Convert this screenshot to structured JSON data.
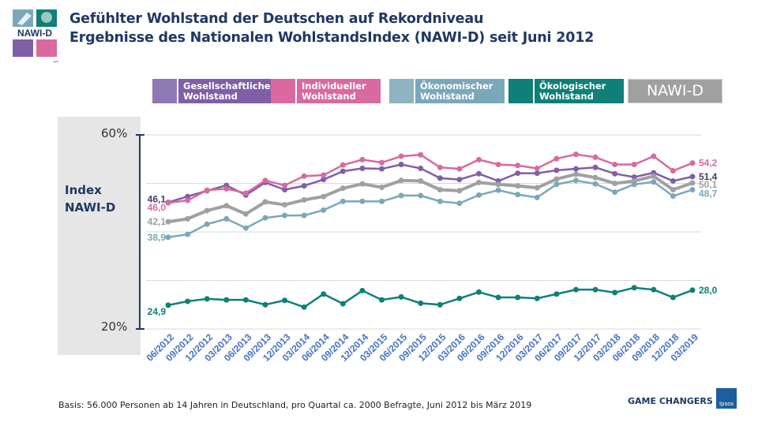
{
  "header": {
    "title_line1": "Gefühlter Wohlstand der Deutschen auf Rekordniveau",
    "title_line2": "Ergebnisse des Nationalen WohlstandsIndex (NAWI-D) seit Juni 2012",
    "logo_text": "NAWI-D",
    "logo_brand": "Ipsos"
  },
  "legend": [
    {
      "line1": "Gesellschaftlicher",
      "line2": "Wohlstand",
      "color": "#7f5fa8",
      "icon": "hands-icon"
    },
    {
      "line1": "Individueller",
      "line2": "Wohlstand",
      "color": "#d9699f",
      "icon": "person-icon"
    },
    {
      "line1": "Ökonomischer",
      "line2": "Wohlstand",
      "color": "#7aa8ba",
      "icon": "money-icon"
    },
    {
      "line1": "Ökologischer",
      "line2": "Wohlstand",
      "color": "#0e8078",
      "icon": "tree-icon"
    },
    {
      "line1": "NAWI-D",
      "line2": "",
      "color": "#a0a0a0",
      "icon": ""
    }
  ],
  "chart_data": {
    "type": "line",
    "ylabel_line1": "Index",
    "ylabel_line2": "NAWI-D",
    "ylim": [
      20,
      60
    ],
    "ytick_labels": [
      "60%",
      "20%"
    ],
    "grid": true,
    "categories": [
      "06/2012",
      "09/2012",
      "12/2012",
      "03/2013",
      "06/2013",
      "09/2013",
      "12/2013",
      "03/2014",
      "06/2014",
      "09/2014",
      "12/2014",
      "03/2015",
      "06/2015",
      "09/2015",
      "12/2015",
      "03/2016",
      "06/2016",
      "09/2016",
      "12/2016",
      "03/2017",
      "06/2017",
      "09/2017",
      "12/2017",
      "03/2018",
      "06/2018",
      "09/2018",
      "12/2018",
      "03/2019"
    ],
    "series": [
      {
        "name": "Gesellschaftlicher Wohlstand",
        "color": "#7f5fa8",
        "first_label": "46,1",
        "last_label": "51,4",
        "values": [
          46.1,
          47.3,
          48.5,
          49.6,
          47.6,
          50.2,
          48.7,
          49.5,
          50.8,
          52.5,
          53.1,
          53.0,
          53.9,
          53.1,
          51.1,
          50.8,
          52.0,
          50.5,
          52.1,
          52.1,
          52.7,
          53.0,
          53.3,
          52.0,
          51.3,
          52.2,
          50.5,
          51.4
        ]
      },
      {
        "name": "Individueller Wohlstand",
        "color": "#d9699f",
        "first_label": "46,0",
        "last_label": "54,2",
        "values": [
          46.0,
          46.5,
          48.6,
          48.9,
          48.0,
          50.6,
          49.6,
          51.5,
          51.7,
          53.8,
          54.9,
          54.3,
          55.6,
          55.9,
          53.3,
          53.0,
          54.9,
          53.9,
          53.7,
          53.1,
          55.1,
          56.0,
          55.4,
          53.9,
          53.9,
          55.6,
          52.6,
          54.2
        ]
      },
      {
        "name": "NAWI-D",
        "color": "#a0a0a0",
        "first_label": "42,1",
        "last_label": "50,1",
        "values": [
          42.1,
          42.7,
          44.4,
          45.4,
          43.7,
          46.2,
          45.6,
          46.6,
          47.3,
          49.0,
          49.9,
          49.2,
          50.6,
          50.5,
          48.7,
          48.5,
          50.2,
          49.8,
          49.5,
          49.1,
          50.9,
          51.9,
          51.2,
          50.0,
          50.5,
          51.5,
          48.7,
          50.1
        ]
      },
      {
        "name": "Ökonomischer Wohlstand",
        "color": "#7aa8ba",
        "first_label": "38,9",
        "last_label": "48,7",
        "values": [
          38.9,
          39.5,
          41.6,
          42.7,
          40.8,
          42.9,
          43.4,
          43.4,
          44.5,
          46.3,
          46.3,
          46.3,
          47.5,
          47.5,
          46.3,
          45.9,
          47.6,
          48.6,
          47.7,
          47.1,
          49.8,
          50.6,
          49.9,
          48.2,
          49.8,
          50.3,
          47.4,
          48.7
        ]
      },
      {
        "name": "Ökologischer Wohlstand",
        "color": "#0e8078",
        "first_label": "24,9",
        "last_label": "28,0",
        "values": [
          24.9,
          25.7,
          26.2,
          26.0,
          26.0,
          25.0,
          25.9,
          24.5,
          27.2,
          25.2,
          27.9,
          26.0,
          26.6,
          25.3,
          25.0,
          26.3,
          27.6,
          26.5,
          26.5,
          26.3,
          27.2,
          28.1,
          28.1,
          27.5,
          28.5,
          28.1,
          26.5,
          28.0
        ]
      }
    ]
  },
  "footer": {
    "basis": "Basis:  56.000  Personen ab 14 Jahren in Deutschland, pro Quartal ca. 2000  Befragte, Juni 2012 bis März 2019",
    "tagline": "GAME CHANGERS",
    "brand": "Ipsos"
  }
}
